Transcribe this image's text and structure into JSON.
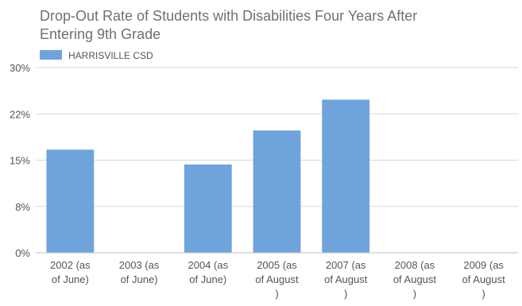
{
  "chart_data": {
    "type": "bar",
    "title_lines": [
      "Drop-Out Rate of Students with Disabilities Four Years After",
      "Entering 9th Grade"
    ],
    "legend": {
      "label": "HARRISVILLE CSD",
      "position": "top-left"
    },
    "series": [
      {
        "name": "HARRISVILLE CSD",
        "color": "#6fa3dc",
        "values": [
          16.7,
          null,
          14.3,
          19.8,
          24.8,
          null,
          null
        ]
      }
    ],
    "categories": [
      [
        "2002 (as",
        "of June)"
      ],
      [
        "2003 (as",
        "of June)"
      ],
      [
        "2004 (as",
        "of June)"
      ],
      [
        "2005 (as",
        "of August",
        ")"
      ],
      [
        "2007 (as",
        "of August",
        ")"
      ],
      [
        "2008 (as",
        "of August",
        ")"
      ],
      [
        "2009 (as",
        "of August",
        ")"
      ]
    ],
    "y_ticks": [
      {
        "value": 0,
        "label": "0%"
      },
      {
        "value": 7.5,
        "label": "8%"
      },
      {
        "value": 15,
        "label": "15%"
      },
      {
        "value": 22.5,
        "label": "22%"
      },
      {
        "value": 30,
        "label": "30%"
      }
    ],
    "ylim": [
      0,
      30
    ],
    "grid": true
  }
}
